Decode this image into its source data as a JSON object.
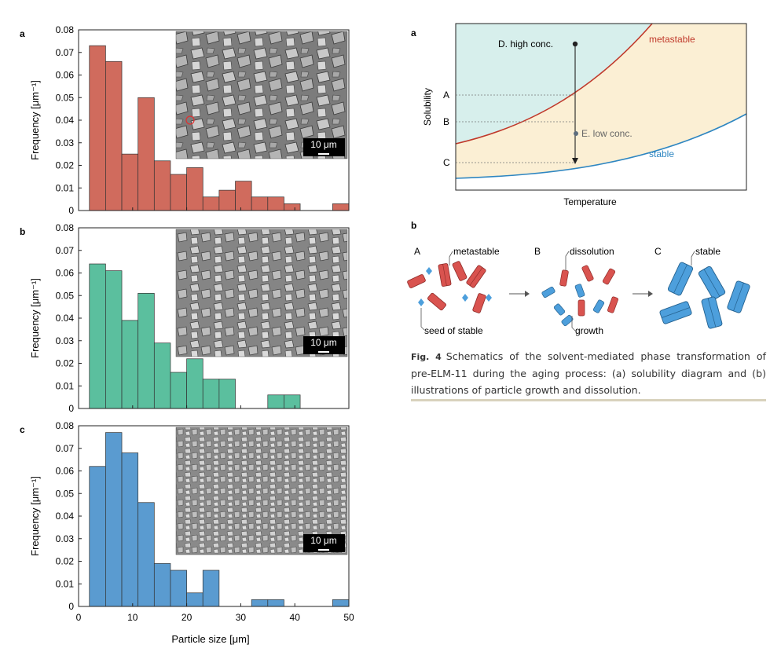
{
  "left_figure": {
    "panels": [
      {
        "letter": "a",
        "scalebar": "10 μm"
      },
      {
        "letter": "b",
        "scalebar": "10 μm"
      },
      {
        "letter": "c",
        "scalebar": "10 μm"
      }
    ],
    "xlabel": "Particle size [μm]",
    "ylabel": "Frequency [μm⁻¹]"
  },
  "chart_data": [
    {
      "type": "bar",
      "panel": "a",
      "bin_edges": [
        2,
        5,
        8,
        11,
        14,
        17,
        20,
        23,
        26,
        29,
        32,
        35,
        38,
        41,
        44,
        47,
        50
      ],
      "values": [
        0.073,
        0.066,
        0.025,
        0.05,
        0.022,
        0.016,
        0.019,
        0.006,
        0.009,
        0.013,
        0.006,
        0.006,
        0.003,
        0,
        0,
        0.003
      ],
      "color": "#d06b5d",
      "xlim": [
        0,
        50
      ],
      "ylim": [
        0,
        0.08
      ],
      "xticks": [
        0,
        10,
        20,
        30,
        40,
        50
      ],
      "yticks": [
        "0",
        "0.01",
        "0.02",
        "0.03",
        "0.04",
        "0.05",
        "0.06",
        "0.07",
        "0.08"
      ],
      "xlabel": "",
      "ylabel": "Frequency [μm⁻¹]"
    },
    {
      "type": "bar",
      "panel": "b",
      "bin_edges": [
        2,
        5,
        8,
        11,
        14,
        17,
        20,
        23,
        26,
        29,
        32,
        35,
        38,
        41,
        44,
        47,
        50
      ],
      "values": [
        0.064,
        0.061,
        0.039,
        0.051,
        0.029,
        0.016,
        0.022,
        0.013,
        0.013,
        0,
        0,
        0.006,
        0.006,
        0,
        0,
        0
      ],
      "color": "#5bbf9e",
      "xlim": [
        0,
        50
      ],
      "ylim": [
        0,
        0.08
      ],
      "xticks": [
        0,
        10,
        20,
        30,
        40,
        50
      ],
      "yticks": [
        "0",
        "0.01",
        "0.02",
        "0.03",
        "0.04",
        "0.05",
        "0.06",
        "0.07",
        "0.08"
      ],
      "xlabel": "",
      "ylabel": "Frequency [μm⁻¹]"
    },
    {
      "type": "bar",
      "panel": "c",
      "bin_edges": [
        2,
        5,
        8,
        11,
        14,
        17,
        20,
        23,
        26,
        29,
        32,
        35,
        38,
        41,
        44,
        47,
        50
      ],
      "values": [
        0.062,
        0.077,
        0.068,
        0.046,
        0.019,
        0.016,
        0.006,
        0.016,
        0,
        0,
        0.003,
        0.003,
        0,
        0,
        0,
        0.003
      ],
      "color": "#5a9bd0",
      "xlim": [
        0,
        50
      ],
      "ylim": [
        0,
        0.08
      ],
      "xticks": [
        "0",
        "10",
        "20",
        "30",
        "40",
        "50"
      ],
      "yticks": [
        "0",
        "0.01",
        "0.02",
        "0.03",
        "0.04",
        "0.05",
        "0.06",
        "0.07",
        "0.08"
      ],
      "xlabel": "Particle size [μm]",
      "ylabel": "Frequency [μm⁻¹]"
    }
  ],
  "solubility_diagram": {
    "letter": "a",
    "xlabel": "Temperature",
    "ylabel": "Solubility",
    "levels": [
      "A",
      "B",
      "C"
    ],
    "curve_metastable": "metastable",
    "curve_stable": "stable",
    "point_d": "D. high conc.",
    "point_e": "E. low conc.",
    "colors": {
      "metastable": "#c0392b",
      "stable": "#2e86c1",
      "region_top": "#d7efec",
      "region_mid": "#fbefd4"
    }
  },
  "schematic": {
    "letter": "b",
    "stage_a": "A",
    "stage_b": "B",
    "stage_c": "C",
    "label_metastable": "metastable",
    "label_seed": "seed of stable",
    "label_dissolution": "dissolution",
    "label_growth": "growth",
    "label_stable": "stable",
    "colors": {
      "red_crystal": "#d9534f",
      "blue_crystal": "#4d9fdc"
    }
  },
  "caption": {
    "figno": "Fig. 4",
    "text": "Schematics of the solvent-mediated phase transformation of pre-ELM-11 during the aging process: (a) solubility diagram and (b) illustrations of particle growth and dissolution."
  }
}
